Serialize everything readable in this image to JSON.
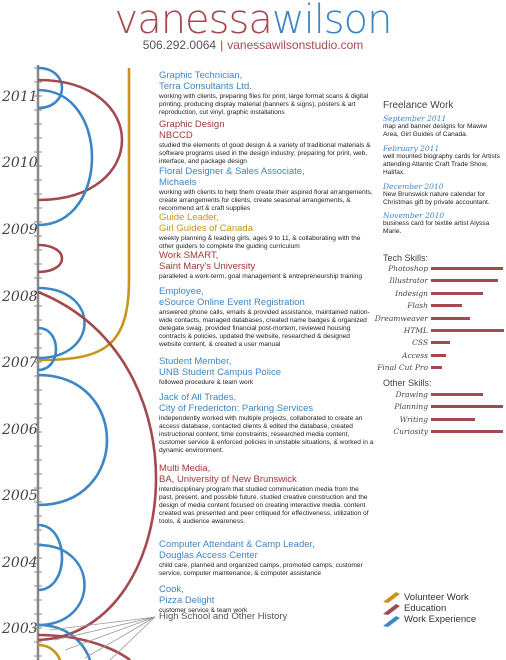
{
  "header": {
    "name_first": "vanessa",
    "name_last": "wilson",
    "phone": "506.292.0064",
    "separator": "|",
    "website": "vanessawilsonstudio.com"
  },
  "years": [
    "2011",
    "2010",
    "2009",
    "2008",
    "2007",
    "2006",
    "2005",
    "2004",
    "2003"
  ],
  "entries": [
    {
      "title": "Graphic Technician,",
      "org": "Terra Consultants Ltd.",
      "desc": "working with clients, preparing files for print, large format scans & digital printing, producing display material (banners & signs), posters & art reproduction, cut vinyl, graphic installations",
      "color": "blue"
    },
    {
      "title": "Graphic Design",
      "org": "NBCCD",
      "desc": "studied the elements of good design & a variety of traditional materials & software programs used in the design industry; preparing for print, web, interface, and package design",
      "color": "red"
    },
    {
      "title": "Floral Designer & Sales Associate,",
      "org": "Michaels",
      "desc": "working with clients to help them create their aspired floral arrangements, create arrangements for clients, create seasonal arrangements, & recommend art & craft supplies",
      "color": "blue"
    },
    {
      "title": "Guide Leader,",
      "org": "Girl Guides of Canada",
      "desc": "weekly planning & leading girls, ages 9 to 11, & collaborating with the other guiders to complete the guiding curriculum",
      "color": "gold"
    },
    {
      "title": "Work SMART,",
      "org": "Saint Mary's University",
      "desc": "paralleled a work-term, goal management & entrepreneurship training",
      "color": "red"
    },
    {
      "title": "Employee,",
      "org": "eSource Online Event Registration",
      "desc": "answered phone calls, emails & provided assistance, maintained nation-wide contacts, managed databases, created name badges & organized delegate swag, provided financial post-mortem, reviewed housing contracts & policies, updated the website, researched & designed website content, & created a user manual",
      "color": "blue"
    },
    {
      "title": "Student Member,",
      "org": "UNB Student Campus Police",
      "desc": "followed procedure & team work",
      "color": "blue"
    },
    {
      "title": "Jack of All Trades,",
      "org": "City of Fredericton: Parking Services",
      "desc": "independently worked with multiple projects, collaborated to create an access database, contacted clients & edited the database, created instructional content, time constraints, researched media content, customer service & enforced policies in unstable situations, & worked in a dynamic environment.",
      "color": "blue"
    },
    {
      "title": "Multi Media,",
      "org": "BA, University of New Brunswick",
      "desc": "interdisciplinary program that studied communication media from the past, present, and possible future. studied creative construction and the design of media content focused on creating interactive media. content created was presented and peer critiqued for effectiveness, utilization of tools, & audience awareness.",
      "color": "red"
    },
    {
      "title": "Computer Attendant & Camp Leader,",
      "org": "Douglas Access Center",
      "desc": "child care, planned and organized camps, promoted camps, customer service, computer maintenance, & computer assistance",
      "color": "blue"
    },
    {
      "title": "Cook,",
      "org": "Pizza Delight",
      "desc": "customer service & team work",
      "color": "blue"
    },
    {
      "title": "High School and Other History",
      "org": "",
      "desc": "",
      "color": "gray"
    }
  ],
  "freelance": {
    "heading": "Freelance Work",
    "items": [
      {
        "date": "September 2011",
        "text": "map and banner designs for Mawiw Area, Girl Guides of Canada."
      },
      {
        "date": "February 2011",
        "text": "well mounted biography cards for Artists attending Atlantic Craft Trade Show, Halifax."
      },
      {
        "date": "December 2010",
        "text": "New Brunswick nature calendar for Christmas gift by private accountant."
      },
      {
        "date": "November 2010",
        "text": "business card for textile artist Alyssa Marie."
      }
    ]
  },
  "tech_skills": {
    "heading": "Tech Skills:",
    "items": [
      {
        "name": "Photoshop",
        "level": 0.97
      },
      {
        "name": "Illustrator",
        "level": 0.9
      },
      {
        "name": "Indesign",
        "level": 0.7
      },
      {
        "name": "Flash",
        "level": 0.42
      },
      {
        "name": "Dreamweaver",
        "level": 0.53
      },
      {
        "name": "HTML",
        "level": 0.98
      },
      {
        "name": "CSS",
        "level": 0.25
      },
      {
        "name": "Access",
        "level": 0.2
      },
      {
        "name": "Final Cut Pro",
        "level": 0.15
      }
    ]
  },
  "other_skills": {
    "heading": "Other Skills:",
    "items": [
      {
        "name": "Drawing",
        "level": 0.7
      },
      {
        "name": "Planning",
        "level": 0.97
      },
      {
        "name": "Writing",
        "level": 0.6
      },
      {
        "name": "Curiosity",
        "level": 0.97
      }
    ]
  },
  "legend": {
    "items": [
      {
        "label": "Volunteer Work",
        "color": "#c8951a"
      },
      {
        "label": "Education",
        "color": "#a44a4f"
      },
      {
        "label": "Work Experience",
        "color": "#3c86c6"
      }
    ]
  },
  "colors": {
    "blue": "#3c86c6",
    "red": "#a44a4f",
    "gold": "#c8951a",
    "spine": "#888888"
  }
}
